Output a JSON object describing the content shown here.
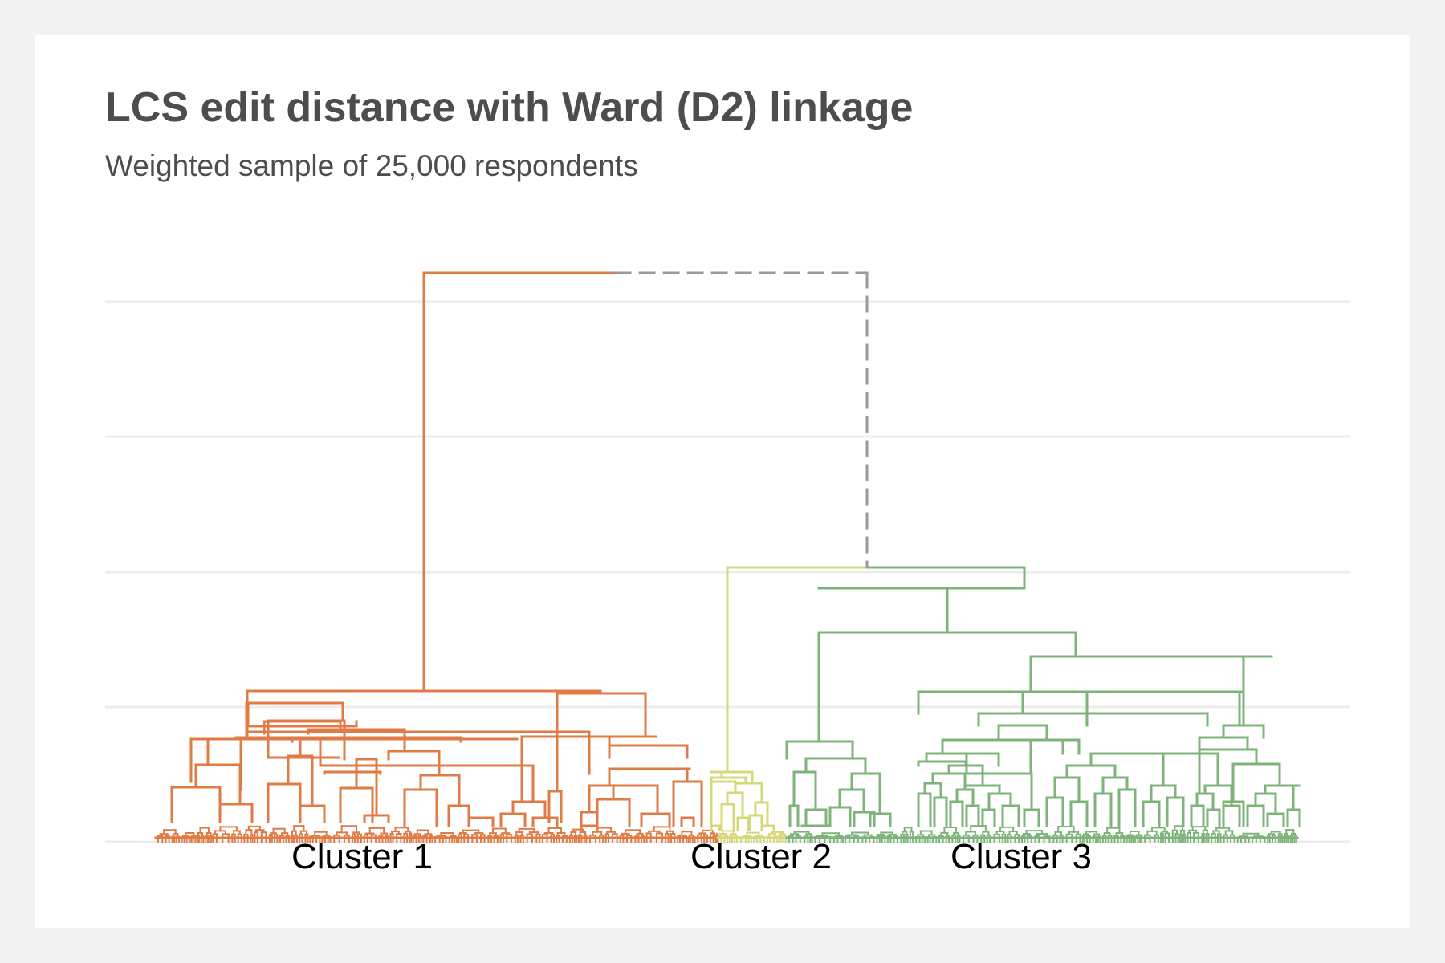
{
  "colors": {
    "background": "#f2f2f2",
    "panel": "#ffffff",
    "grid": "#ececec",
    "cluster_1": "#e07b45",
    "cluster_2": "#d5d87b",
    "cluster_3": "#7eb47a",
    "cut_line": "#9a9a9a"
  },
  "chart_data": {
    "type": "dendrogram",
    "title": "LCS edit distance with Ward (D2) linkage",
    "subtitle": "Weighted sample of 25,000 respondents",
    "grid": true,
    "axis_ticks_shown": false,
    "linkage": "Ward (D2)",
    "clusters": [
      {
        "label": "Cluster 1",
        "color": "#e07b45"
      },
      {
        "label": "Cluster 2",
        "color": "#d5d87b"
      },
      {
        "label": "Cluster 3",
        "color": "#7eb47a"
      }
    ],
    "merge_heights_relative": {
      "root": 1.0,
      "cluster_2_3_merge": 0.42,
      "cluster_3_top": 0.36,
      "cluster_1_top": 0.26
    },
    "root_link_right_segment_style": "dashed"
  }
}
